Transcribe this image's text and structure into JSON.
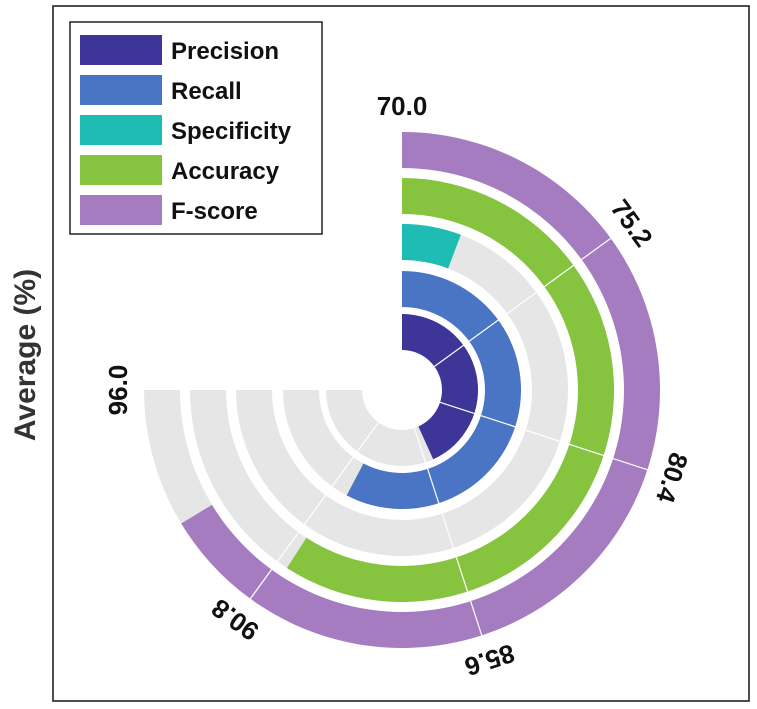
{
  "chart_data": {
    "type": "radial-bar",
    "ylabel": "Average (%)",
    "axis_range": [
      70.0,
      96.0
    ],
    "angular_ticks": [
      "70.0",
      "75.2",
      "80.4",
      "85.6",
      "90.8",
      "96.0"
    ],
    "legend_position": "top-left",
    "series": [
      {
        "name": "Precision",
        "color": "#3d3597",
        "value": 85.0
      },
      {
        "name": "Recall",
        "color": "#4a74c4",
        "value": 90.0
      },
      {
        "name": "Specificity",
        "color": "#1fbcb4",
        "value": 72.0
      },
      {
        "name": "Accuracy",
        "color": "#86c440",
        "value": 90.5
      },
      {
        "name": "F-score",
        "color": "#a57cc0",
        "value": 93.0
      }
    ]
  }
}
